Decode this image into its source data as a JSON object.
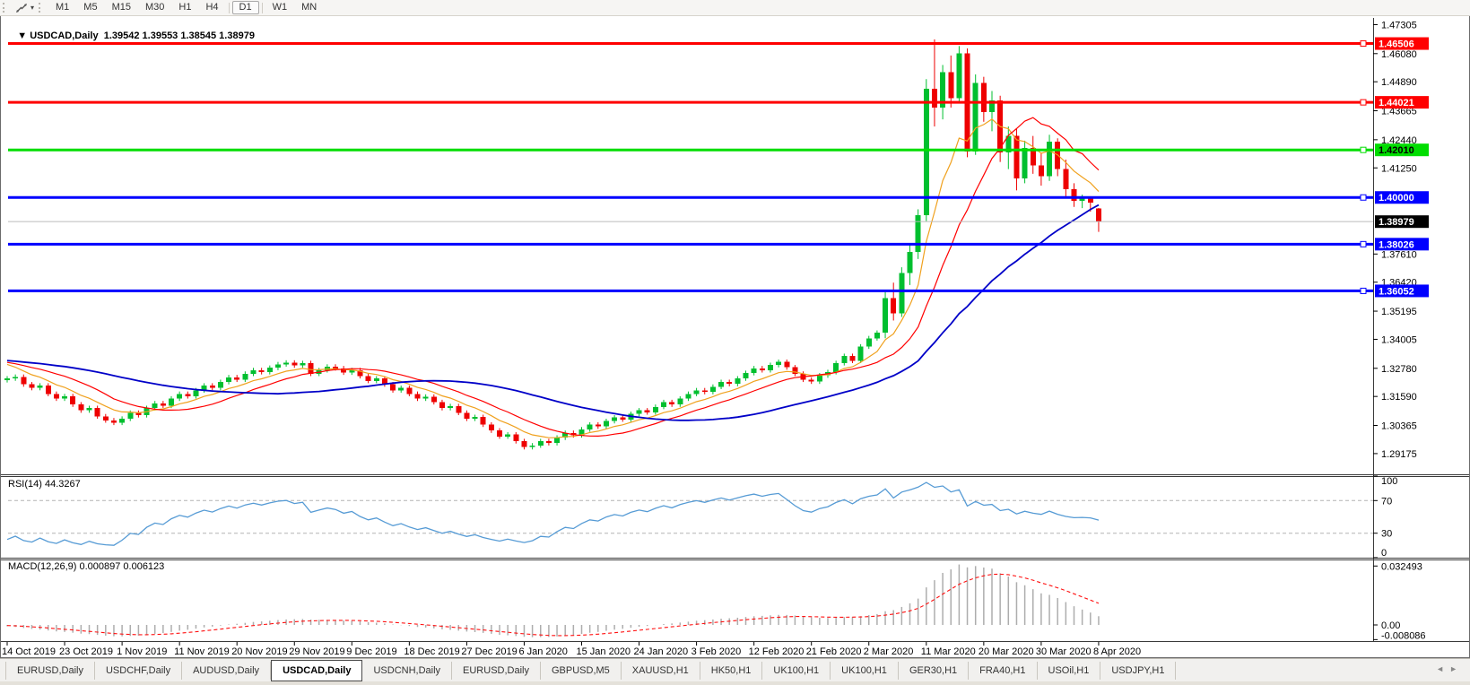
{
  "toolbar": {
    "timeframes": [
      "M1",
      "M5",
      "M15",
      "M30",
      "H1",
      "H4",
      "D1",
      "W1",
      "MN"
    ],
    "active": "D1"
  },
  "header": {
    "symbol": "USDCAD,Daily",
    "values": "1.39542 1.39553 1.38545 1.38979"
  },
  "price_axis": {
    "range": {
      "min": 1.283,
      "max": 1.4755
    },
    "ticks": [
      "1.47305",
      "1.46080",
      "1.44890",
      "1.43665",
      "1.42440",
      "1.41250",
      "1.37610",
      "1.36420",
      "1.35195",
      "1.34005",
      "1.32780",
      "1.31590",
      "1.30365",
      "1.29175"
    ]
  },
  "hlines": [
    {
      "price": 1.46506,
      "label": "1.46506",
      "color": "#FF0000",
      "badge_fg": "#FFFFFF",
      "width": 3
    },
    {
      "price": 1.44021,
      "label": "1.44021",
      "color": "#FF0000",
      "badge_fg": "#FFFFFF",
      "width": 3
    },
    {
      "price": 1.4201,
      "label": "1.42010",
      "color": "#00DD00",
      "badge_fg": "#000000",
      "width": 3
    },
    {
      "price": 1.4,
      "label": "1.40000",
      "color": "#0000FF",
      "badge_fg": "#FFFFFF",
      "width": 3
    },
    {
      "price": 1.38026,
      "label": "1.38026",
      "color": "#0000FF",
      "badge_fg": "#FFFFFF",
      "width": 3
    },
    {
      "price": 1.36052,
      "label": "1.36052",
      "color": "#0000FF",
      "badge_fg": "#FFFFFF",
      "width": 3
    }
  ],
  "current_price": {
    "price": 1.38979,
    "label": "1.38979",
    "line_color": "#BBBBBB",
    "badge_bg": "#000000",
    "badge_fg": "#FFFFFF"
  },
  "chart_data": {
    "type": "candlestick",
    "symbol": "USDCAD",
    "timeframe": "Daily",
    "up_color": "#00BF2F",
    "down_color": "#EE0000",
    "wick": 0.001,
    "first_open": 1.3228,
    "closes": [
      1.3235,
      1.3242,
      1.321,
      1.3195,
      1.3205,
      1.317,
      1.315,
      1.316,
      1.3125,
      1.31,
      1.311,
      1.3075,
      1.3058,
      1.3048,
      1.3065,
      1.309,
      1.308,
      1.311,
      1.313,
      1.312,
      1.315,
      1.317,
      1.316,
      1.3185,
      1.3205,
      1.3195,
      1.322,
      1.324,
      1.323,
      1.3255,
      1.327,
      1.3262,
      1.328,
      1.3295,
      1.3302,
      1.329,
      1.33,
      1.3255,
      1.327,
      1.3285,
      1.3278,
      1.326,
      1.327,
      1.3245,
      1.3225,
      1.3235,
      1.321,
      1.3185,
      1.3195,
      1.317,
      1.315,
      1.3158,
      1.3135,
      1.311,
      1.3118,
      1.309,
      1.3065,
      1.3072,
      1.304,
      1.3015,
      1.299,
      1.2998,
      1.297,
      1.2945,
      1.2952,
      1.297,
      1.2962,
      1.2985,
      1.3005,
      1.2995,
      1.302,
      1.304,
      1.3032,
      1.3055,
      1.307,
      1.3062,
      1.3085,
      1.31,
      1.3092,
      1.3115,
      1.3135,
      1.3125,
      1.315,
      1.317,
      1.3185,
      1.3178,
      1.32,
      1.322,
      1.3212,
      1.3235,
      1.3258,
      1.3278,
      1.327,
      1.3292,
      1.3305,
      1.3282,
      1.3255,
      1.323,
      1.3222,
      1.3248,
      1.3262,
      1.33,
      1.333,
      1.331,
      1.337,
      1.3405,
      1.3428
    ],
    "ohlc_tail": [
      [
        1.3428,
        1.36,
        1.3405,
        1.3575
      ],
      [
        1.3575,
        1.364,
        1.348,
        1.351
      ],
      [
        1.351,
        1.3705,
        1.3495,
        1.368
      ],
      [
        1.368,
        1.38,
        1.363,
        1.377
      ],
      [
        1.377,
        1.395,
        1.374,
        1.3925
      ],
      [
        1.3925,
        1.45,
        1.39,
        1.446
      ],
      [
        1.446,
        1.4668,
        1.43,
        1.438
      ],
      [
        1.438,
        1.456,
        1.433,
        1.453
      ],
      [
        1.453,
        1.46,
        1.438,
        1.442
      ],
      [
        1.442,
        1.464,
        1.44,
        1.461
      ],
      [
        1.461,
        1.463,
        1.417,
        1.4195
      ],
      [
        1.4195,
        1.452,
        1.418,
        1.4485
      ],
      [
        1.4485,
        1.451,
        1.432,
        1.436
      ],
      [
        1.436,
        1.445,
        1.428,
        1.441
      ],
      [
        1.441,
        1.443,
        1.415,
        1.419
      ],
      [
        1.419,
        1.43,
        1.412,
        1.426
      ],
      [
        1.426,
        1.429,
        1.403,
        1.408
      ],
      [
        1.408,
        1.424,
        1.406,
        1.421
      ],
      [
        1.421,
        1.426,
        1.41,
        1.4135
      ],
      [
        1.4135,
        1.419,
        1.405,
        1.409
      ],
      [
        1.409,
        1.4265,
        1.407,
        1.4235
      ],
      [
        1.4235,
        1.425,
        1.409,
        1.412
      ],
      [
        1.412,
        1.416,
        1.4,
        1.4035
      ],
      [
        1.4035,
        1.406,
        1.396,
        1.3985
      ],
      [
        1.3985,
        1.4012,
        1.3955,
        1.3995
      ],
      [
        1.3995,
        1.4005,
        1.394,
        1.3978
      ],
      [
        1.39542,
        1.39553,
        1.38545,
        1.38979
      ]
    ],
    "history_seed": {
      "count": 40,
      "base": 1.3315,
      "amp": 0.0018,
      "wave": 3
    },
    "moving_averages": [
      {
        "name": "fast-ma",
        "type": "ema",
        "period": 8,
        "color": "#F0A11E",
        "width": 1.2
      },
      {
        "name": "mid-ma",
        "type": "sma",
        "period": 14,
        "color": "#FF0000",
        "width": 1.2
      },
      {
        "name": "slow-ma",
        "type": "sma",
        "period": 34,
        "color": "#0000C8",
        "width": 1.8
      }
    ]
  },
  "rsi": {
    "label": "RSI(14) 44.3267",
    "period": 14,
    "color": "#569BD5",
    "ticks": [
      {
        "label": "100",
        "value": 100
      },
      {
        "label": "70",
        "value": 70
      },
      {
        "label": "30",
        "value": 30
      },
      {
        "label": "0",
        "value": 0
      }
    ],
    "dashed_levels": [
      70,
      30
    ]
  },
  "macd": {
    "label": "MACD(12,26,9) 0.000897 0.006123",
    "fast": 12,
    "slow": 26,
    "signal": 9,
    "range": {
      "min": -0.0089,
      "max": 0.0361
    },
    "hist_color": "#ADADAD",
    "signal_color": "#FF1111",
    "ticks": [
      {
        "label": "0.032493",
        "value": 0.032493
      },
      {
        "label": "0.00",
        "value": 0.0
      },
      {
        "label": "-0.008086",
        "value": -0.008086
      }
    ]
  },
  "date_axis": {
    "step_bars": 7,
    "labels": [
      "14 Oct 2019",
      "23 Oct 2019",
      "1 Nov 2019",
      "11 Nov 2019",
      "20 Nov 2019",
      "29 Nov 2019",
      "9 Dec 2019",
      "18 Dec 2019",
      "27 Dec 2019",
      "6 Jan 2020",
      "15 Jan 2020",
      "24 Jan 2020",
      "3 Feb 2020",
      "12 Feb 2020",
      "21 Feb 2020",
      "2 Mar 2020",
      "11 Mar 2020",
      "20 Mar 2020",
      "30 Mar 2020",
      "8 Apr 2020"
    ]
  },
  "tabs": {
    "active_index": 3,
    "nav_left": "◄",
    "nav_right": "►",
    "items": [
      "EURUSD,Daily",
      "USDCHF,Daily",
      "AUDUSD,Daily",
      "USDCAD,Daily",
      "USDCNH,Daily",
      "EURUSD,Daily",
      "GBPUSD,M5",
      "XAUUSD,H1",
      "HK50,H1",
      "UK100,H1",
      "UK100,H1",
      "GER30,H1",
      "FRA40,H1",
      "USOil,H1",
      "USDJPY,H1"
    ]
  }
}
